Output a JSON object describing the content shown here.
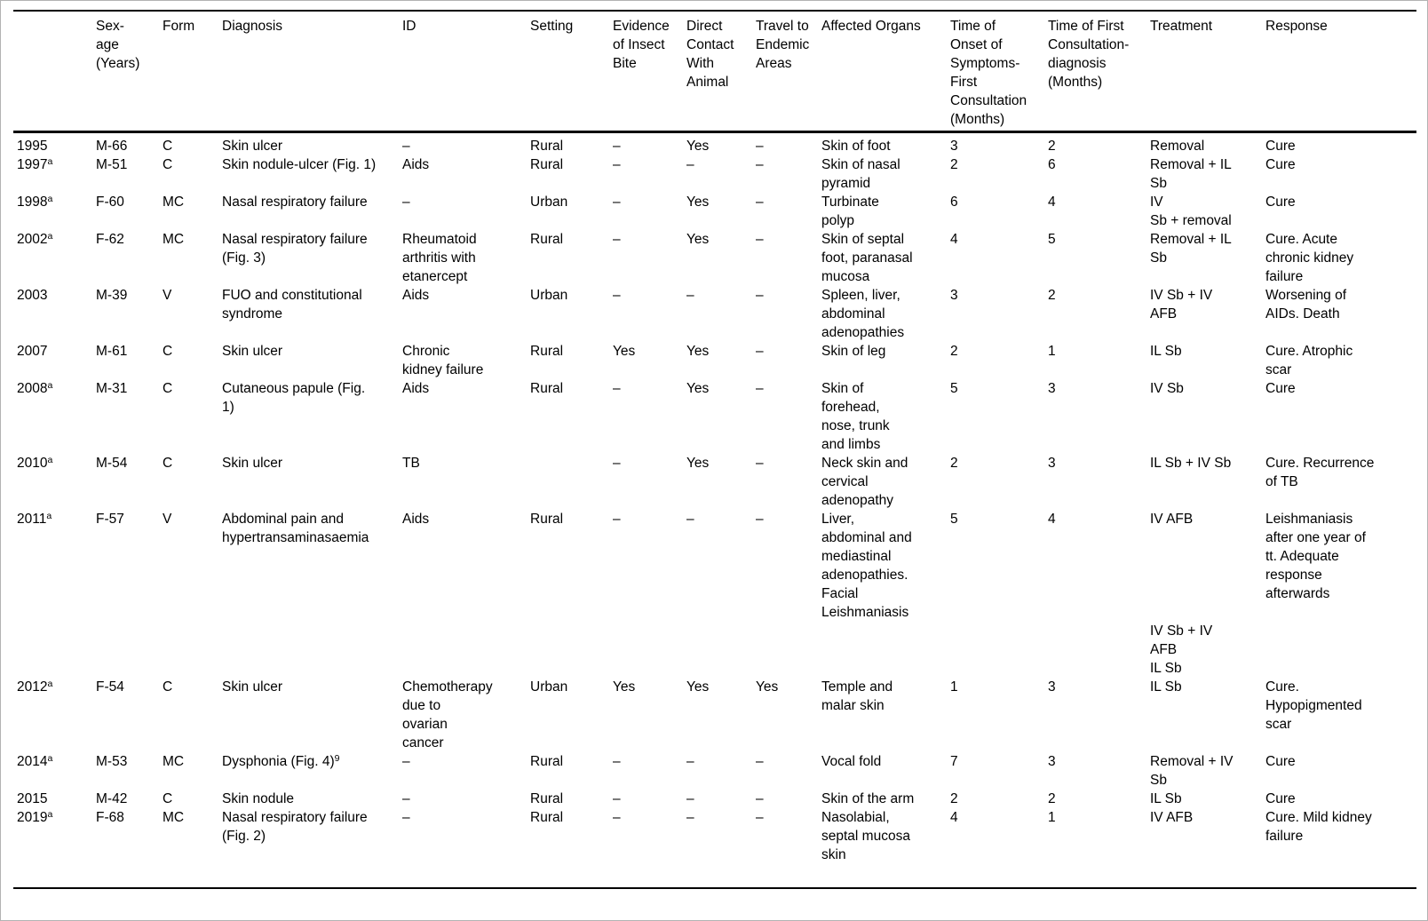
{
  "page": {
    "background": "#ffffff",
    "frame_border": "#b3b3b3",
    "rule_color": "#000000",
    "text_color": "#000000"
  },
  "table": {
    "column_keys": [
      "year",
      "sex_age",
      "form",
      "diagnosis",
      "id",
      "setting",
      "insect_bite",
      "animal_contact",
      "travel",
      "organs",
      "onset_months",
      "diagnosis_months",
      "treatment",
      "response"
    ],
    "headers": {
      "year": "",
      "sex_age": "Sex-\nage\n(Years)",
      "form": "Form",
      "diagnosis": "Diagnosis",
      "id": "ID",
      "setting": "Setting",
      "insect_bite": "Evidence\nof Insect\nBite",
      "animal_contact": "Direct\nContact\nWith\nAnimal",
      "travel": "Travel to\nEndemic\nAreas",
      "organs": "Affected Organs",
      "onset_months": "Time of\nOnset of\nSymptoms-\nFirst\nConsultation\n(Months)",
      "diagnosis_months": "Time of First\nConsultation-\ndiagnosis\n(Months)",
      "treatment": "Treatment",
      "response": "Response"
    },
    "rows": [
      {
        "year": "1995",
        "year_sup": "",
        "sex_age": "M-66",
        "form": "C",
        "diagnosis": "Skin ulcer",
        "diagnosis_sup": "",
        "id": "–",
        "setting": "Rural",
        "insect_bite": "–",
        "animal_contact": "Yes",
        "travel": "–",
        "organs": "Skin of foot",
        "onset_months": "3",
        "diagnosis_months": "2",
        "treatment": "Removal",
        "response": "Cure"
      },
      {
        "year": "1997",
        "year_sup": "a",
        "sex_age": "M-51",
        "form": "C",
        "diagnosis": "Skin nodule-ulcer (Fig. 1)",
        "diagnosis_sup": "",
        "id": "Aids",
        "setting": "Rural",
        "insect_bite": "–",
        "animal_contact": "–",
        "travel": "–",
        "organs": "Skin of nasal pyramid",
        "onset_months": "2",
        "diagnosis_months": "6",
        "treatment": "Removal + IL Sb",
        "response": "Cure"
      },
      {
        "year": "1998",
        "year_sup": "a",
        "sex_age": "F-60",
        "form": "MC",
        "diagnosis": "Nasal respiratory failure",
        "diagnosis_sup": "",
        "id": "–",
        "setting": "Urban",
        "insect_bite": "–",
        "animal_contact": "Yes",
        "travel": "–",
        "organs": "Turbinate polyp",
        "onset_months": "6",
        "diagnosis_months": "4",
        "treatment": "IV\nSb + removal",
        "response": "Cure"
      },
      {
        "year": "2002",
        "year_sup": "a",
        "sex_age": "F-62",
        "form": "MC",
        "diagnosis": "Nasal respiratory failure (Fig. 3)",
        "diagnosis_sup": "",
        "id": "Rheumatoid arthritis with etanercept",
        "setting": "Rural",
        "insect_bite": "–",
        "animal_contact": "Yes",
        "travel": "–",
        "organs": "Skin of septal foot, paranasal mucosa",
        "onset_months": "4",
        "diagnosis_months": "5",
        "treatment": "Removal + IL Sb",
        "response": "Cure. Acute chronic kidney failure"
      },
      {
        "year": "2003",
        "year_sup": "",
        "sex_age": "M-39",
        "form": "V",
        "diagnosis": "FUO and constitutional syndrome",
        "diagnosis_sup": "",
        "id": "Aids",
        "setting": "Urban",
        "insect_bite": "–",
        "animal_contact": "–",
        "travel": "–",
        "organs": "Spleen, liver, abdominal adenopathies",
        "onset_months": "3",
        "diagnosis_months": "2",
        "treatment": "IV Sb + IV AFB",
        "response": "Worsening of AIDs. Death"
      },
      {
        "year": "2007",
        "year_sup": "",
        "sex_age": "M-61",
        "form": "C",
        "diagnosis": "Skin ulcer",
        "diagnosis_sup": "",
        "id": "Chronic kidney failure",
        "setting": "Rural",
        "insect_bite": "Yes",
        "animal_contact": "Yes",
        "travel": "–",
        "organs": "Skin of leg",
        "onset_months": "2",
        "diagnosis_months": "1",
        "treatment": "IL Sb",
        "response": "Cure. Atrophic scar"
      },
      {
        "year": "2008",
        "year_sup": "a",
        "sex_age": "M-31",
        "form": "C",
        "diagnosis": "Cutaneous papule (Fig. 1)",
        "diagnosis_sup": "",
        "id": "Aids",
        "setting": "Rural",
        "insect_bite": "–",
        "animal_contact": "Yes",
        "travel": "–",
        "organs": "Skin of forehead, nose, trunk and limbs",
        "onset_months": "5",
        "diagnosis_months": "3",
        "treatment": "IV Sb",
        "response": "Cure"
      },
      {
        "year": "2010",
        "year_sup": "a",
        "sex_age": "M-54",
        "form": "C",
        "diagnosis": "Skin ulcer",
        "diagnosis_sup": "",
        "id": "TB",
        "setting": "",
        "insect_bite": "–",
        "animal_contact": "Yes",
        "travel": "–",
        "organs": "Neck skin and cervical adenopathy",
        "onset_months": "2",
        "diagnosis_months": "3",
        "treatment": "IL Sb + IV Sb",
        "response": "Cure. Recurrence of TB"
      },
      {
        "year": "2011",
        "year_sup": "a",
        "sex_age": "F-57",
        "form": "V",
        "diagnosis": "Abdominal pain and hypertransaminasaemia",
        "diagnosis_sup": "",
        "id": "Aids",
        "setting": "Rural",
        "insect_bite": "–",
        "animal_contact": "–",
        "travel": "–",
        "organs": "Liver, abdominal and mediastinal adenopathies. Facial Leishmaniasis",
        "onset_months": "5",
        "diagnosis_months": "4",
        "treatment": "IV AFB",
        "response": "Leishmaniasis after one year of tt. Adequate response afterwards"
      },
      {
        "year": "",
        "year_sup": "",
        "sex_age": "",
        "form": "",
        "diagnosis": "",
        "diagnosis_sup": "",
        "id": "",
        "setting": "",
        "insect_bite": "",
        "animal_contact": "",
        "travel": "",
        "organs": "",
        "onset_months": "",
        "diagnosis_months": "",
        "treatment": "IV Sb + IV AFB\nIL Sb",
        "response": ""
      },
      {
        "year": "2012",
        "year_sup": "a",
        "sex_age": "F-54",
        "form": "C",
        "diagnosis": "Skin ulcer",
        "diagnosis_sup": "",
        "id": "Chemotherapy due to ovarian cancer",
        "setting": "Urban",
        "insect_bite": "Yes",
        "animal_contact": "Yes",
        "travel": "Yes",
        "organs": "Temple and malar skin",
        "onset_months": "1",
        "diagnosis_months": "3",
        "treatment": "IL Sb",
        "response": "Cure. Hypopigmented scar"
      },
      {
        "year": "2014",
        "year_sup": "a",
        "sex_age": "M-53",
        "form": "MC",
        "diagnosis": "Dysphonia (Fig. 4)",
        "diagnosis_sup": "9",
        "id": "–",
        "setting": "Rural",
        "insect_bite": "–",
        "animal_contact": "–",
        "travel": "–",
        "organs": "Vocal fold",
        "onset_months": "7",
        "diagnosis_months": "3",
        "treatment": "Removal + IV Sb",
        "response": "Cure"
      },
      {
        "year": "2015",
        "year_sup": "",
        "sex_age": "M-42",
        "form": "C",
        "diagnosis": "Skin nodule",
        "diagnosis_sup": "",
        "id": "–",
        "setting": "Rural",
        "insect_bite": "–",
        "animal_contact": "–",
        "travel": "–",
        "organs": "Skin of the arm",
        "onset_months": "2",
        "diagnosis_months": "2",
        "treatment": "IL Sb",
        "response": "Cure"
      },
      {
        "year": "2019",
        "year_sup": "a",
        "sex_age": "F-68",
        "form": "MC",
        "diagnosis": "Nasal respiratory failure (Fig. 2)",
        "diagnosis_sup": "",
        "id": "–",
        "setting": "Rural",
        "insect_bite": "–",
        "animal_contact": "–",
        "travel": "–",
        "organs": "Nasolabial, septal mucosa skin",
        "onset_months": "4",
        "diagnosis_months": "1",
        "treatment": "IV AFB",
        "response": "Cure. Mild kidney failure"
      }
    ]
  }
}
